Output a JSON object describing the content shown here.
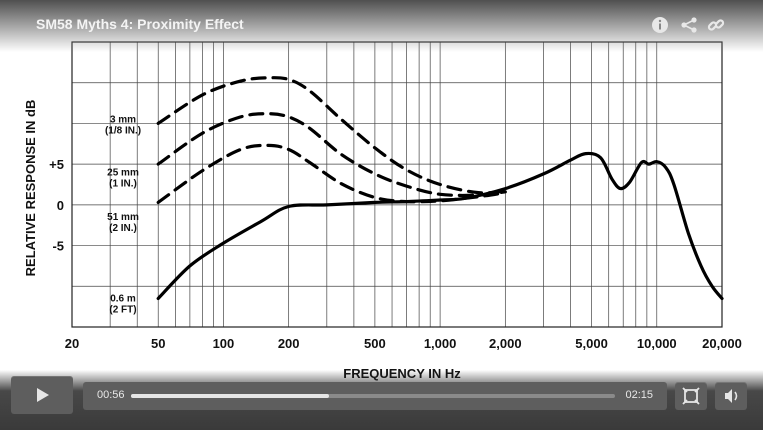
{
  "video": {
    "title": "SM58 Myths 4: Proximity Effect",
    "current_time": "00:56",
    "total_time": "02:15",
    "progress": 0.41
  },
  "top_icons": [
    "info-icon",
    "share-icon",
    "link-icon"
  ],
  "controls": {
    "play_icon": "play-icon",
    "fullscreen_icon": "fullscreen-icon",
    "volume_icon": "volume-icon"
  },
  "chart_data": {
    "type": "line",
    "xlabel": "FREQUENCY IN Hz",
    "ylabel": "RELATIVE RESPONSE IN dB",
    "x_scale": "log",
    "xlim": [
      20,
      20000
    ],
    "ylim": [
      -15,
      20
    ],
    "grid": true,
    "x_ticks": [
      {
        "value": 20,
        "label": "20"
      },
      {
        "value": 50,
        "label": "50"
      },
      {
        "value": 100,
        "label": "100"
      },
      {
        "value": 200,
        "label": "200"
      },
      {
        "value": 500,
        "label": "500"
      },
      {
        "value": 1000,
        "label": "1,000"
      },
      {
        "value": 2000,
        "label": "2,000"
      },
      {
        "value": 5000,
        "label": "5,000"
      },
      {
        "value": 10000,
        "label": "10,000"
      },
      {
        "value": 20000,
        "label": "20,000"
      }
    ],
    "y_ticks": [
      {
        "value": 5,
        "label": "+5"
      },
      {
        "value": 0,
        "label": "0"
      },
      {
        "value": -5,
        "label": "-5"
      }
    ],
    "curve_labels": [
      {
        "line1": "3 mm",
        "line2": "(1/8 IN.)",
        "y": 10
      },
      {
        "line1": "25 mm",
        "line2": "(1 IN.)",
        "y": 3.5
      },
      {
        "line1": "51 mm",
        "line2": "(2 IN.)",
        "y": -2
      },
      {
        "line1": "0.6 m",
        "line2": "(2 FT)",
        "y": -12
      }
    ],
    "series": [
      {
        "name": "3 mm (1/8 IN.)",
        "style": "dashed",
        "points": [
          [
            50,
            10
          ],
          [
            80,
            13.5
          ],
          [
            120,
            15.2
          ],
          [
            160,
            15.6
          ],
          [
            200,
            15.4
          ],
          [
            250,
            14
          ],
          [
            350,
            10.5
          ],
          [
            500,
            7
          ],
          [
            700,
            4.3
          ],
          [
            1000,
            2.5
          ],
          [
            1500,
            1.5
          ],
          [
            2000,
            1.7
          ]
        ]
      },
      {
        "name": "25 mm (1 IN.)",
        "style": "dashed",
        "points": [
          [
            50,
            5
          ],
          [
            80,
            8.8
          ],
          [
            120,
            10.8
          ],
          [
            160,
            11.2
          ],
          [
            200,
            10.8
          ],
          [
            250,
            9.4
          ],
          [
            350,
            6.2
          ],
          [
            500,
            3.8
          ],
          [
            700,
            2.3
          ],
          [
            1000,
            1.3
          ],
          [
            1500,
            1.2
          ],
          [
            2000,
            1.6
          ]
        ]
      },
      {
        "name": "51 mm (2 IN.)",
        "style": "dashed",
        "points": [
          [
            50,
            0.3
          ],
          [
            80,
            4.2
          ],
          [
            120,
            6.8
          ],
          [
            160,
            7.3
          ],
          [
            200,
            6.8
          ],
          [
            250,
            5.2
          ],
          [
            350,
            2.6
          ],
          [
            500,
            0.9
          ],
          [
            700,
            0.4
          ],
          [
            1000,
            0.5
          ],
          [
            1500,
            1.0
          ],
          [
            2000,
            1.5
          ]
        ]
      },
      {
        "name": "0.6 m (2 FT)",
        "style": "solid",
        "points": [
          [
            50,
            -11.5
          ],
          [
            70,
            -7.5
          ],
          [
            100,
            -4.7
          ],
          [
            150,
            -2
          ],
          [
            200,
            -0.2
          ],
          [
            300,
            0
          ],
          [
            500,
            0.3
          ],
          [
            700,
            0.4
          ],
          [
            1000,
            0.6
          ],
          [
            1300,
            0.8
          ],
          [
            2000,
            2.0
          ],
          [
            3000,
            3.8
          ],
          [
            4000,
            5.5
          ],
          [
            4700,
            6.3
          ],
          [
            5500,
            5.8
          ],
          [
            6200,
            3.2
          ],
          [
            6800,
            2.0
          ],
          [
            7500,
            2.8
          ],
          [
            8500,
            5.2
          ],
          [
            9200,
            5.0
          ],
          [
            10000,
            5.3
          ],
          [
            11000,
            4.6
          ],
          [
            12000,
            2.5
          ],
          [
            14000,
            -3.5
          ],
          [
            16000,
            -7.5
          ],
          [
            18000,
            -10
          ],
          [
            20000,
            -11.5
          ]
        ]
      }
    ]
  }
}
